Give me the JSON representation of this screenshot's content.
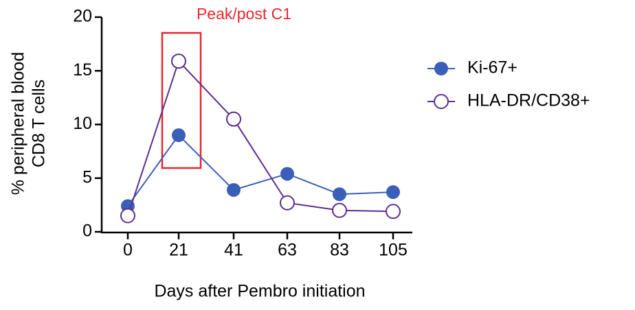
{
  "chart_data": {
    "type": "line",
    "annotation": "Peak/post C1",
    "xlabel": "Days after Pembro initiation",
    "ylabel": [
      "% peripheral blood",
      "CD8 T cells"
    ],
    "categories": [
      "0",
      "21",
      "41",
      "63",
      "83",
      "105"
    ],
    "series": [
      {
        "name": "Ki-67+",
        "color": "#3a5fb8",
        "marker": "filled",
        "values": [
          2.4,
          9.0,
          3.9,
          5.4,
          3.5,
          3.7
        ]
      },
      {
        "name": "HLA-DR/CD38+",
        "color": "#5b2d91",
        "marker": "open",
        "values": [
          1.5,
          15.9,
          10.5,
          2.7,
          2.0,
          1.9
        ]
      }
    ],
    "ylim": [
      0,
      20
    ],
    "yticks": [
      0,
      5,
      10,
      15,
      20
    ],
    "legend": "right"
  }
}
